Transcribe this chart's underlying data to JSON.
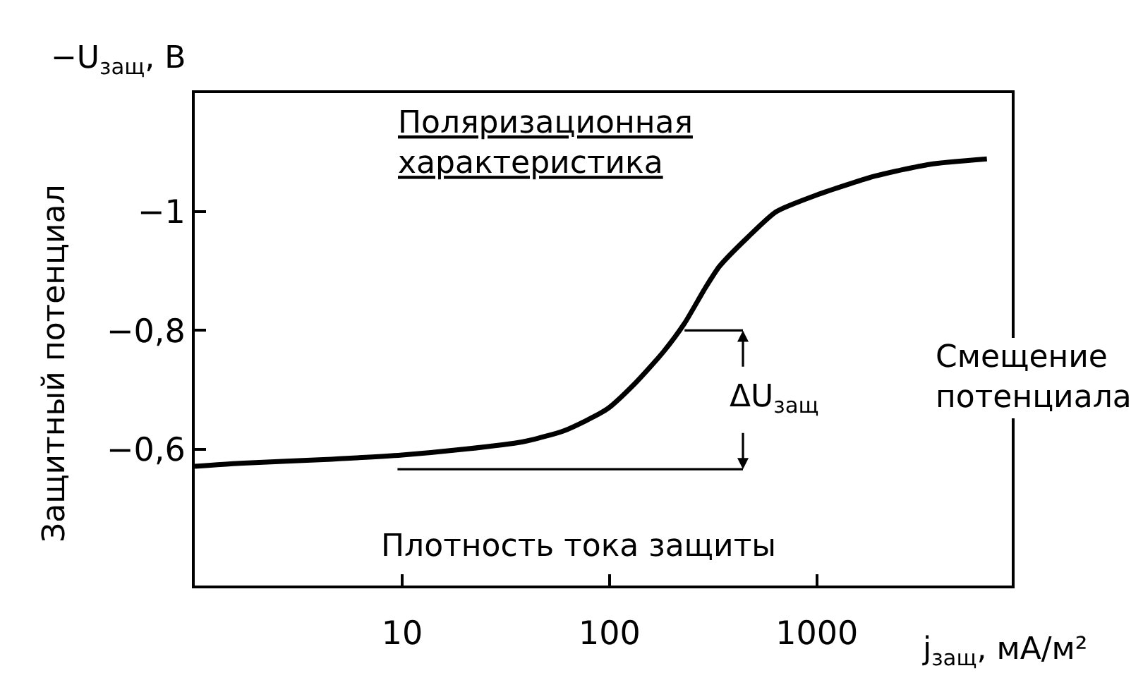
{
  "chart_data": {
    "type": "line",
    "xlabel": "j$_{защ}$, мА/м²",
    "ylabel": "Защитный потенциал",
    "log": "x",
    "xlim": [
      1,
      8700
    ],
    "xticks": [
      10,
      100,
      1000
    ],
    "ylim": [
      -0.37,
      -1.2
    ],
    "yticks": [
      {
        "value": -1,
        "label": "−1"
      },
      {
        "value": -0.8,
        "label": "−0,8"
      },
      {
        "value": -0.6,
        "label": "−0,6"
      }
    ],
    "marker": "none",
    "line_style": "solid",
    "series": [
      {
        "color": "#000000",
        "x": [
          1,
          1.65,
          4.57,
          10,
          20.2,
          37.8,
          60.5,
          97,
          133,
          182,
          230,
          290,
          339,
          464,
          635,
          1010,
          1900,
          3500,
          6600
        ],
        "values": [
          -0.571,
          -0.576,
          -0.583,
          -0.59,
          -0.6,
          -0.612,
          -0.631,
          -0.667,
          -0.711,
          -0.764,
          -0.812,
          -0.872,
          -0.908,
          -0.957,
          -1.0,
          -1.029,
          -1.06,
          -1.08,
          -1.089
        ]
      },
      {
        "color": "#000000",
        "x": [
          9.5,
          440
        ],
        "values": [
          -0.566,
          -0.566
        ]
      },
      {
        "color": "#000000",
        "x": [
          230,
          440
        ],
        "values": [
          -0.8,
          -0.8
        ]
      }
    ],
    "annotations": [
      "−U$_{защ}$, В",
      "Поляризационная\nхарактеристика",
      {
        "text": "ΔU$_{защ}$",
        "x": 440,
        "y": -0.8
      },
      "Смещение\nпотенциала",
      "Плотность тока защиты"
    ]
  }
}
